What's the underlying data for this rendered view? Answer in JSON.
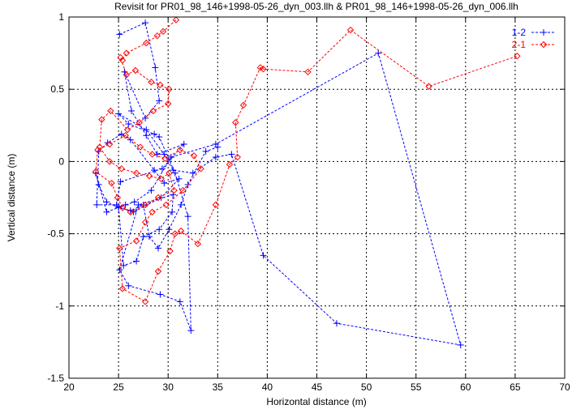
{
  "chart_data": {
    "type": "line",
    "title": "Revisit for PR01_98_146+1998-05-26_dyn_003.llh & PR01_98_146+1998-05-26_dyn_006.llh",
    "xlabel": "Horizontal distance (m)",
    "ylabel": "Vertical distance (m)",
    "xlim": [
      20,
      70
    ],
    "ylim": [
      -1.5,
      1
    ],
    "xticks": [
      20,
      25,
      30,
      35,
      40,
      45,
      50,
      55,
      60,
      65,
      70
    ],
    "yticks": [
      -1.5,
      -1,
      -0.5,
      0,
      0.5,
      1
    ],
    "xtick_labels": [
      "20",
      "25",
      "30",
      "35",
      "40",
      "45",
      "50",
      "55",
      "60",
      "65",
      "70"
    ],
    "ytick_labels": [
      "-1.5",
      "-1",
      "-0.5",
      "0",
      "0.5",
      "1"
    ],
    "grid": true,
    "legend_position": "top-right",
    "series": [
      {
        "name": "1-2",
        "color": "#0000ff",
        "marker": "plus",
        "x": [
          25.1,
          27.7,
          28.7,
          29.1,
          27.7,
          25.6,
          26.3,
          27.8,
          28.9,
          31.6,
          29.4,
          25.2,
          24.8,
          22.8,
          23.0,
          23.9,
          25.3,
          26.2,
          28.6,
          29.6,
          31.1,
          29.3,
          26.5,
          25.0,
          25.5,
          26.8,
          27.5,
          29.1,
          30.4,
          30.5,
          27.0,
          25.1,
          26.0,
          29.2,
          31.2,
          32.3,
          32.0,
          30.7,
          29.1,
          28.6,
          26.0,
          25.0,
          27.8,
          29.6,
          30.5,
          32.5,
          34.8,
          36.4,
          39.6,
          47.0,
          59.5,
          51.2,
          34.8,
          30.3,
          28.3,
          26.6,
          25.7,
          23.8,
          22.7,
          23.0,
          23.8,
          25.0,
          26.2,
          27.5,
          28.1,
          29.0,
          30.1,
          31.3,
          32.0,
          33.8,
          35.0
        ],
        "y": [
          0.88,
          0.96,
          0.65,
          0.42,
          0.3,
          0.62,
          0.35,
          0.18,
          0.05,
          0.12,
          -0.05,
          -0.14,
          -0.3,
          -0.3,
          0.07,
          0.13,
          0.19,
          0.15,
          -0.06,
          -0.15,
          -0.12,
          -0.25,
          -0.35,
          -0.31,
          -0.72,
          -0.69,
          -0.52,
          -0.47,
          -0.35,
          -0.23,
          -0.3,
          -0.75,
          -0.86,
          -0.92,
          -0.97,
          -1.17,
          -0.38,
          -0.08,
          0.17,
          0.19,
          0.26,
          0.33,
          0.22,
          0.05,
          -0.06,
          -0.08,
          0.03,
          0.05,
          -0.65,
          -1.12,
          -1.27,
          0.75,
          0.12,
          0.03,
          -0.2,
          -0.28,
          -0.3,
          -0.35,
          -0.08,
          -0.16,
          -0.28,
          -0.32,
          -0.34,
          -0.3,
          -0.52,
          -0.6,
          -0.47,
          -0.3,
          -0.16,
          0.07,
          0.1
        ]
      },
      {
        "name": "2-1",
        "color": "#ff0000",
        "marker": "diamond",
        "x": [
          30.8,
          29.5,
          28.9,
          27.8,
          25.8,
          25.4,
          25.2,
          25.8,
          26.7,
          28.3,
          29.2,
          30.1,
          30.0,
          28.5,
          27.1,
          25.9,
          24.2,
          23.3,
          23.1,
          24.1,
          25.3,
          26.8,
          28.1,
          29.3,
          30.1,
          30.6,
          29.0,
          27.7,
          26.2,
          25.4,
          24.9,
          24.3,
          22.7,
          22.9,
          24.1,
          25.7,
          27.2,
          28.4,
          29.7,
          31.2,
          32.6,
          33.3,
          31.5,
          29.8,
          28.4,
          27.7,
          26.8,
          25.1,
          25.4,
          27.7,
          29.0,
          30.2,
          30.7,
          31.3,
          33.0,
          34.8,
          36.2,
          37.0,
          36.8,
          37.6,
          39.3,
          39.6,
          44.1,
          48.4,
          56.3,
          65.2
        ],
        "y": [
          0.98,
          0.9,
          0.87,
          0.82,
          0.75,
          0.7,
          0.72,
          0.6,
          0.63,
          0.55,
          0.53,
          0.5,
          0.4,
          0.35,
          0.27,
          0.22,
          0.35,
          0.29,
          0.1,
          0.0,
          -0.05,
          -0.08,
          -0.1,
          -0.12,
          -0.08,
          -0.2,
          -0.25,
          -0.3,
          -0.35,
          -0.32,
          -0.25,
          -0.15,
          -0.07,
          0.08,
          0.12,
          0.18,
          0.1,
          0.05,
          0.02,
          0.08,
          0.04,
          -0.05,
          -0.2,
          -0.3,
          -0.35,
          -0.42,
          -0.55,
          -0.6,
          -0.88,
          -0.97,
          -0.76,
          -0.62,
          -0.5,
          -0.48,
          -0.57,
          -0.3,
          -0.02,
          0.03,
          0.27,
          0.39,
          0.65,
          0.64,
          0.62,
          0.91,
          0.52,
          0.73
        ]
      }
    ]
  }
}
